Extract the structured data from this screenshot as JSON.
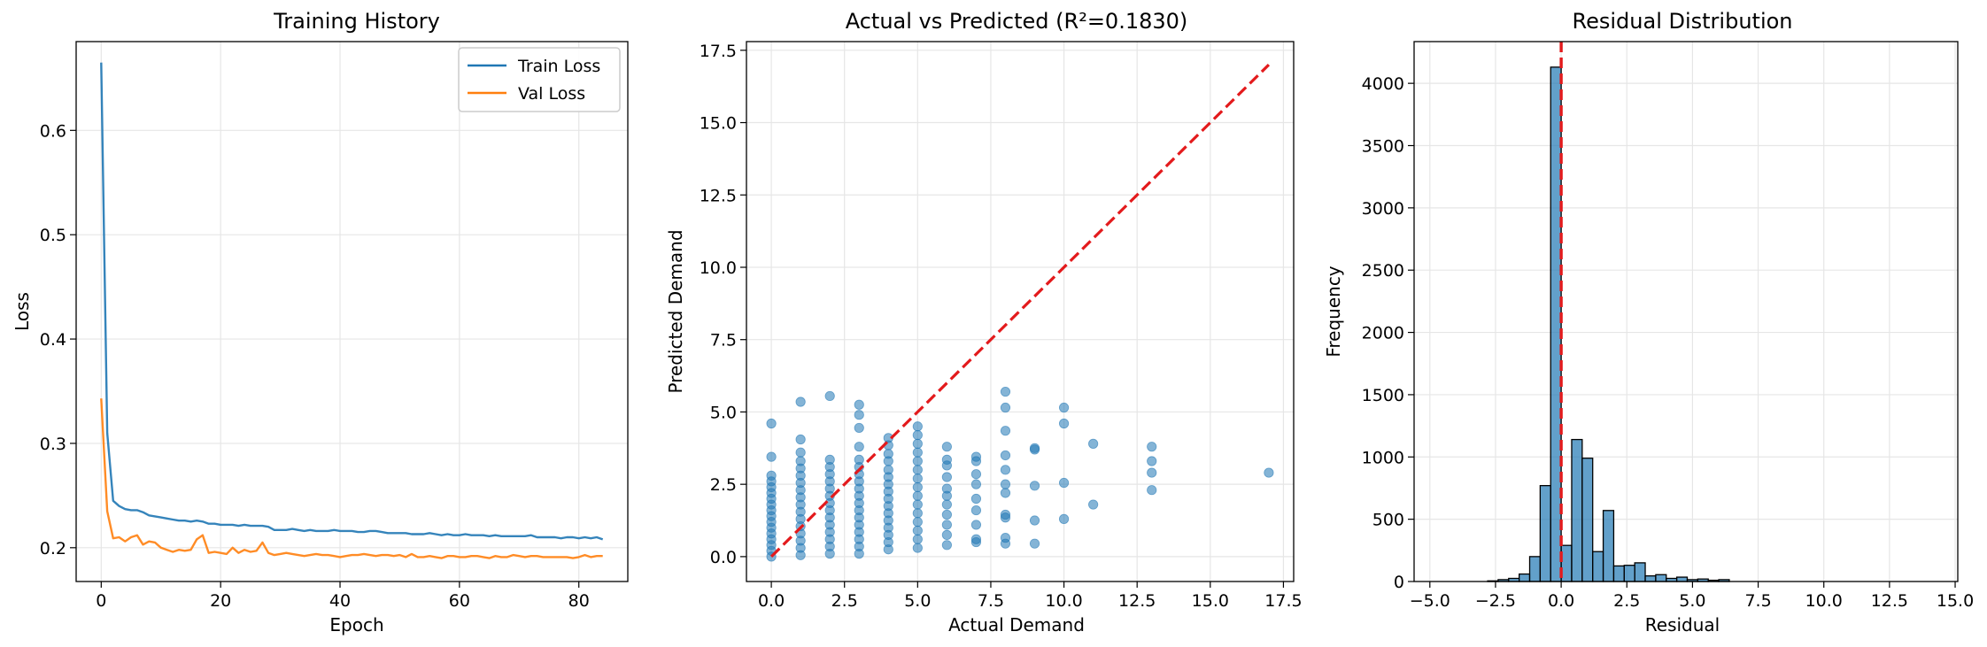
{
  "colors": {
    "train": "#1f77b4",
    "val": "#ff7f0e",
    "scatter": "#1f77b4",
    "hist": "#1f77b4",
    "ref": "#e31a1c",
    "grid": "#e6e6e6",
    "axis": "#000000"
  },
  "chart_data": [
    {
      "type": "line",
      "title": "Training History",
      "xlabel": "Epoch",
      "ylabel": "Loss",
      "xlim": [
        -4.2,
        88.2
      ],
      "ylim": [
        0.1676,
        0.6851
      ],
      "xticks": [
        0,
        20,
        40,
        60,
        80
      ],
      "xtick_labels": [
        "0",
        "20",
        "40",
        "60",
        "80"
      ],
      "yticks": [
        0.2,
        0.3,
        0.4,
        0.5,
        0.6
      ],
      "ytick_labels": [
        "0.2",
        "0.3",
        "0.4",
        "0.5",
        "0.6"
      ],
      "grid": true,
      "legend": "top-right",
      "series": [
        {
          "name": "Train Loss",
          "x": [
            0,
            1,
            2,
            3,
            4,
            5,
            6,
            7,
            8,
            9,
            10,
            11,
            12,
            13,
            14,
            15,
            16,
            17,
            18,
            19,
            20,
            21,
            22,
            23,
            24,
            25,
            26,
            27,
            28,
            29,
            30,
            31,
            32,
            33,
            34,
            35,
            36,
            37,
            38,
            39,
            40,
            41,
            42,
            43,
            44,
            45,
            46,
            47,
            48,
            49,
            50,
            51,
            52,
            53,
            54,
            55,
            56,
            57,
            58,
            59,
            60,
            61,
            62,
            63,
            64,
            65,
            66,
            67,
            68,
            69,
            70,
            71,
            72,
            73,
            74,
            75,
            76,
            77,
            78,
            79,
            80,
            81,
            82,
            83,
            84
          ],
          "y": [
            0.665,
            0.31,
            0.245,
            0.24,
            0.237,
            0.236,
            0.236,
            0.234,
            0.231,
            0.23,
            0.229,
            0.228,
            0.227,
            0.226,
            0.226,
            0.225,
            0.226,
            0.225,
            0.223,
            0.223,
            0.222,
            0.222,
            0.222,
            0.221,
            0.222,
            0.221,
            0.221,
            0.221,
            0.22,
            0.217,
            0.217,
            0.217,
            0.218,
            0.217,
            0.216,
            0.217,
            0.216,
            0.216,
            0.216,
            0.217,
            0.216,
            0.216,
            0.216,
            0.215,
            0.215,
            0.216,
            0.216,
            0.215,
            0.214,
            0.214,
            0.214,
            0.214,
            0.213,
            0.213,
            0.213,
            0.214,
            0.213,
            0.212,
            0.213,
            0.212,
            0.212,
            0.213,
            0.212,
            0.212,
            0.212,
            0.211,
            0.212,
            0.211,
            0.211,
            0.211,
            0.211,
            0.211,
            0.212,
            0.21,
            0.21,
            0.21,
            0.21,
            0.209,
            0.21,
            0.21,
            0.209,
            0.21,
            0.209,
            0.21,
            0.208
          ]
        },
        {
          "name": "Val Loss",
          "x": [
            0,
            1,
            2,
            3,
            4,
            5,
            6,
            7,
            8,
            9,
            10,
            11,
            12,
            13,
            14,
            15,
            16,
            17,
            18,
            19,
            20,
            21,
            22,
            23,
            24,
            25,
            26,
            27,
            28,
            29,
            30,
            31,
            32,
            33,
            34,
            35,
            36,
            37,
            38,
            39,
            40,
            41,
            42,
            43,
            44,
            45,
            46,
            47,
            48,
            49,
            50,
            51,
            52,
            53,
            54,
            55,
            56,
            57,
            58,
            59,
            60,
            61,
            62,
            63,
            64,
            65,
            66,
            67,
            68,
            69,
            70,
            71,
            72,
            73,
            74,
            75,
            76,
            77,
            78,
            79,
            80,
            81,
            82,
            83,
            84
          ],
          "y": [
            0.343,
            0.235,
            0.209,
            0.21,
            0.206,
            0.21,
            0.212,
            0.203,
            0.206,
            0.205,
            0.2,
            0.198,
            0.196,
            0.198,
            0.197,
            0.198,
            0.208,
            0.212,
            0.195,
            0.196,
            0.195,
            0.194,
            0.2,
            0.195,
            0.198,
            0.196,
            0.197,
            0.205,
            0.195,
            0.193,
            0.194,
            0.195,
            0.194,
            0.193,
            0.192,
            0.193,
            0.194,
            0.193,
            0.193,
            0.192,
            0.191,
            0.192,
            0.193,
            0.193,
            0.194,
            0.193,
            0.192,
            0.193,
            0.193,
            0.192,
            0.193,
            0.191,
            0.194,
            0.191,
            0.191,
            0.192,
            0.191,
            0.19,
            0.192,
            0.192,
            0.191,
            0.191,
            0.192,
            0.192,
            0.191,
            0.19,
            0.192,
            0.191,
            0.191,
            0.193,
            0.192,
            0.191,
            0.192,
            0.192,
            0.191,
            0.191,
            0.191,
            0.191,
            0.191,
            0.19,
            0.191,
            0.193,
            0.191,
            0.192,
            0.192
          ]
        }
      ]
    },
    {
      "type": "scatter",
      "title": "Actual vs Predicted (R²=0.1830)",
      "xlabel": "Actual Demand",
      "ylabel": "Predicted Demand",
      "xlim": [
        -0.85,
        17.85
      ],
      "ylim": [
        -0.86,
        17.8
      ],
      "xticks": [
        0,
        2.5,
        5,
        7.5,
        10,
        12.5,
        15,
        17.5
      ],
      "xtick_labels": [
        "0.0",
        "2.5",
        "5.0",
        "7.5",
        "10.0",
        "12.5",
        "15.0",
        "17.5"
      ],
      "yticks": [
        0,
        2.5,
        5,
        7.5,
        10,
        12.5,
        15,
        17.5
      ],
      "ytick_labels": [
        "0.0",
        "2.5",
        "5.0",
        "7.5",
        "10.0",
        "12.5",
        "15.0",
        "17.5"
      ],
      "grid": true,
      "reference_line": {
        "x": [
          0,
          17
        ],
        "y": [
          0,
          17
        ],
        "style": "dashed"
      },
      "columns": [
        {
          "x": 0,
          "ys": [
            0.0,
            0.2,
            0.4,
            0.6,
            0.8,
            1.0,
            1.2,
            1.4,
            1.6,
            1.8,
            2.0,
            2.2,
            2.4,
            2.6,
            2.8,
            3.45,
            4.6
          ]
        },
        {
          "x": 1,
          "ys": [
            0.05,
            0.3,
            0.55,
            0.8,
            1.05,
            1.3,
            1.55,
            1.8,
            2.05,
            2.3,
            2.55,
            2.8,
            3.05,
            3.3,
            3.6,
            4.05,
            5.35
          ]
        },
        {
          "x": 2,
          "ys": [
            0.1,
            0.35,
            0.6,
            0.85,
            1.1,
            1.35,
            1.6,
            1.85,
            2.1,
            2.35,
            2.6,
            2.85,
            3.1,
            3.35,
            5.55
          ]
        },
        {
          "x": 3,
          "ys": [
            0.1,
            0.35,
            0.6,
            0.85,
            1.1,
            1.35,
            1.6,
            1.85,
            2.1,
            2.35,
            2.6,
            2.85,
            3.1,
            3.35,
            3.8,
            4.45,
            4.9,
            5.25
          ]
        },
        {
          "x": 4,
          "ys": [
            0.25,
            0.5,
            0.75,
            1.0,
            1.25,
            1.5,
            1.75,
            2.0,
            2.25,
            2.5,
            2.75,
            3.0,
            3.3,
            3.55,
            3.85,
            4.1
          ]
        },
        {
          "x": 5,
          "ys": [
            0.3,
            0.6,
            0.9,
            1.2,
            1.5,
            1.8,
            2.1,
            2.4,
            2.7,
            3.0,
            3.3,
            3.6,
            3.9,
            4.2,
            4.5
          ]
        },
        {
          "x": 6,
          "ys": [
            0.4,
            0.75,
            1.1,
            1.45,
            1.8,
            2.1,
            2.35,
            2.75,
            3.15,
            3.35,
            3.8
          ]
        },
        {
          "x": 7,
          "ys": [
            0.5,
            0.6,
            1.1,
            1.6,
            2.0,
            2.5,
            2.85,
            3.3,
            3.45
          ]
        },
        {
          "x": 8,
          "ys": [
            0.45,
            0.65,
            1.35,
            1.45,
            2.2,
            2.5,
            3.0,
            3.5,
            4.35,
            5.15,
            5.7
          ]
        },
        {
          "x": 9,
          "ys": [
            0.45,
            1.25,
            2.45,
            3.7,
            3.75
          ]
        },
        {
          "x": 10,
          "ys": [
            1.3,
            2.55,
            4.6,
            5.15
          ]
        },
        {
          "x": 11,
          "ys": [
            1.8,
            3.9
          ]
        },
        {
          "x": 13,
          "ys": [
            2.3,
            2.9,
            3.3,
            3.8
          ]
        },
        {
          "x": 17,
          "ys": [
            2.9
          ]
        }
      ]
    },
    {
      "type": "bar",
      "title": "Residual Distribution",
      "xlabel": "Residual",
      "ylabel": "Frequency",
      "xlim": [
        -5.6,
        15.1
      ],
      "ylim": [
        0,
        4335
      ],
      "xticks": [
        -5,
        -2.5,
        0,
        2.5,
        5,
        7.5,
        10,
        12.5,
        15
      ],
      "xtick_labels": [
        "−5.0",
        "−2.5",
        "0.0",
        "2.5",
        "5.0",
        "7.5",
        "10.0",
        "12.5",
        "15.0"
      ],
      "yticks": [
        0,
        500,
        1000,
        1500,
        2000,
        2500,
        3000,
        3500,
        4000
      ],
      "ytick_labels": [
        "0",
        "500",
        "1000",
        "1500",
        "2000",
        "2500",
        "3000",
        "3500",
        "4000"
      ],
      "grid": true,
      "reference_vline": 0,
      "bin_width": 0.4,
      "bin_starts": [
        -2.8,
        -2.4,
        -2.0,
        -1.6,
        -1.2,
        -0.8,
        -0.4,
        0.0,
        0.4,
        0.8,
        1.2,
        1.6,
        2.0,
        2.4,
        2.8,
        3.2,
        3.6,
        4.0,
        4.4,
        4.8,
        5.2,
        5.6,
        6.0
      ],
      "counts": [
        5,
        15,
        25,
        60,
        200,
        770,
        4130,
        290,
        1140,
        990,
        240,
        570,
        125,
        130,
        150,
        45,
        55,
        25,
        35,
        15,
        20,
        10,
        15
      ]
    }
  ]
}
